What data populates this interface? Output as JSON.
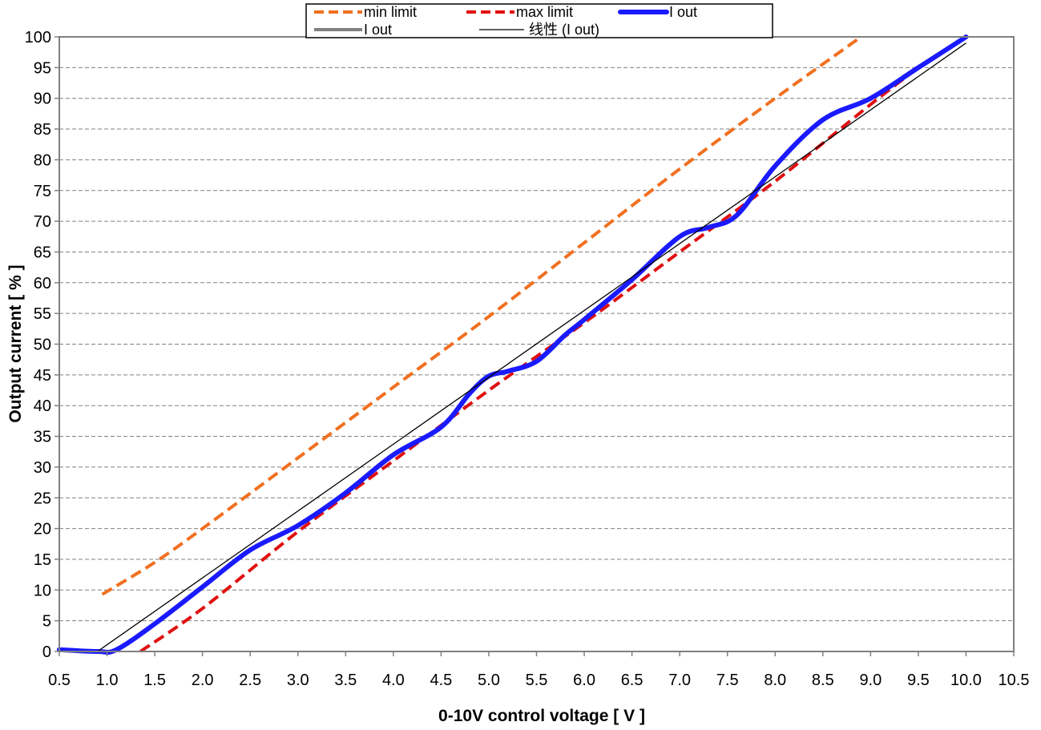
{
  "chart_data": {
    "type": "line",
    "title": "",
    "xlabel": "0-10V control voltage [ V ]",
    "ylabel": "Output current  [ % ]",
    "xlim": [
      0.5,
      10.5
    ],
    "ylim": [
      0,
      100
    ],
    "x_ticks": [
      "0.5",
      "1.0",
      "1.5",
      "2.0",
      "2.5",
      "3.0",
      "3.5",
      "4.0",
      "4.5",
      "5.0",
      "5.5",
      "6.0",
      "6.5",
      "7.0",
      "7.5",
      "8.0",
      "8.5",
      "9.0",
      "9.5",
      "10.0",
      "10.5"
    ],
    "y_ticks": [
      "0",
      "5",
      "10",
      "15",
      "20",
      "25",
      "30",
      "35",
      "40",
      "45",
      "50",
      "55",
      "60",
      "65",
      "70",
      "75",
      "80",
      "85",
      "90",
      "95",
      "100"
    ],
    "grid": "horizontal dashed",
    "legend_position": "top",
    "legend": {
      "row1": [
        "min limit",
        "max limit",
        "I out"
      ],
      "row2": [
        "I out",
        "线性 (I out)"
      ]
    },
    "series": [
      {
        "name": "min limit",
        "color": "#f07020",
        "style": "dashed",
        "x": [
          0.95,
          1.5,
          2.0,
          3.0,
          4.0,
          5.0,
          6.0,
          7.0,
          8.0,
          8.9
        ],
        "y": [
          9.3,
          14.5,
          20.0,
          31.5,
          43.0,
          54.5,
          66.5,
          78.5,
          90.0,
          100
        ]
      },
      {
        "name": "max limit",
        "color": "#e01010",
        "style": "dashed",
        "x": [
          1.35,
          2.0,
          3.0,
          4.0,
          5.0,
          6.0,
          7.0,
          8.0,
          9.0,
          9.5
        ],
        "y": [
          0,
          7.0,
          19.5,
          31.0,
          42.5,
          53.5,
          65.0,
          76.5,
          89.0,
          95.0
        ]
      },
      {
        "name": "I out",
        "color": "#1a1aff",
        "style": "thick",
        "x": [
          0.5,
          0.9,
          1.1,
          1.5,
          2.0,
          2.5,
          3.0,
          3.5,
          4.0,
          4.5,
          4.8,
          5.0,
          5.2,
          5.5,
          5.8,
          6.0,
          6.5,
          7.0,
          7.3,
          7.6,
          8.0,
          8.5,
          9.0,
          9.5,
          10.0
        ],
        "y": [
          0.3,
          0,
          0.3,
          4.5,
          10.5,
          16.5,
          20.5,
          25.8,
          32.0,
          36.5,
          42.0,
          44.8,
          45.6,
          47.2,
          51.5,
          54.0,
          60.5,
          67.5,
          69.0,
          71.0,
          79.0,
          86.5,
          90.0,
          95.0,
          100
        ]
      },
      {
        "name": "线性 (I out)",
        "color": "#000000",
        "style": "thin",
        "x": [
          0.9,
          10.0
        ],
        "y": [
          0,
          99.0
        ]
      }
    ]
  }
}
